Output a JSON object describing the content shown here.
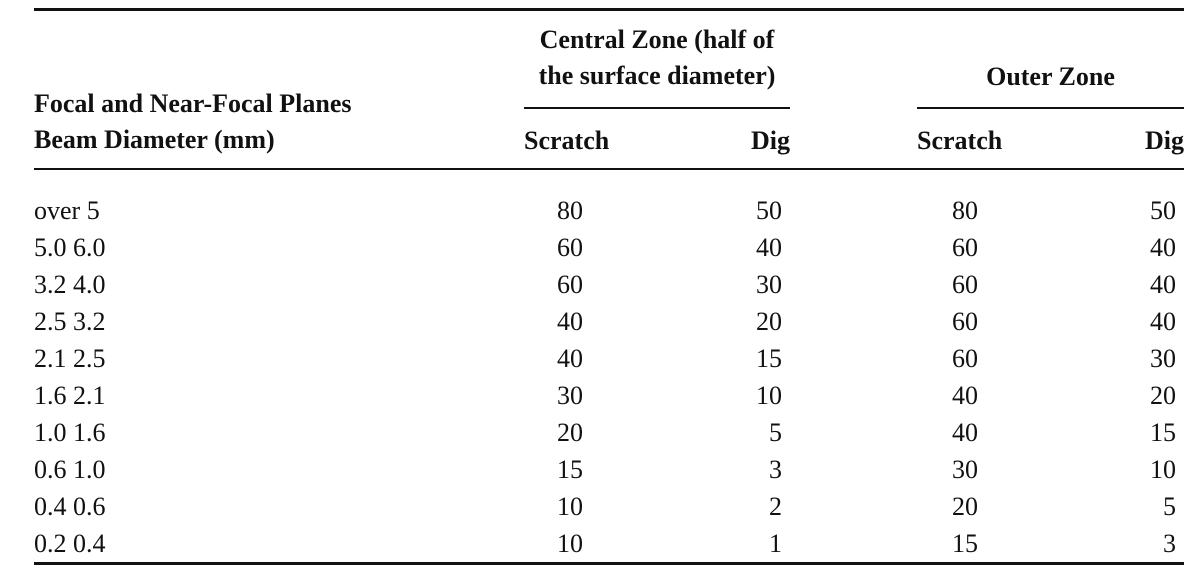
{
  "table": {
    "header": {
      "beam_line1": "Focal and Near-Focal Planes",
      "beam_line2": "Beam Diameter (mm)",
      "central_line1": "Central Zone (half of",
      "central_line2": "the surface diameter)",
      "outer": "Outer Zone",
      "central_scratch": "Scratch",
      "central_dig": "Dig",
      "outer_scratch": "Scratch",
      "outer_dig": "Dig"
    },
    "rows": [
      {
        "beam": "over 5",
        "central_scratch": "80",
        "central_dig": "50",
        "outer_scratch": "80",
        "outer_dig": "50"
      },
      {
        "beam": "5.0  6.0",
        "central_scratch": "60",
        "central_dig": "40",
        "outer_scratch": "60",
        "outer_dig": "40"
      },
      {
        "beam": "3.2  4.0",
        "central_scratch": "60",
        "central_dig": "30",
        "outer_scratch": "60",
        "outer_dig": "40"
      },
      {
        "beam": "2.5  3.2",
        "central_scratch": "40",
        "central_dig": "20",
        "outer_scratch": "60",
        "outer_dig": "40"
      },
      {
        "beam": "2.1  2.5",
        "central_scratch": "40",
        "central_dig": "15",
        "outer_scratch": "60",
        "outer_dig": "30"
      },
      {
        "beam": "1.6  2.1",
        "central_scratch": "30",
        "central_dig": "10",
        "outer_scratch": "40",
        "outer_dig": "20"
      },
      {
        "beam": "1.0  1.6",
        "central_scratch": "20",
        "central_dig": "5",
        "outer_scratch": "40",
        "outer_dig": "15"
      },
      {
        "beam": "0.6  1.0",
        "central_scratch": "15",
        "central_dig": "3",
        "outer_scratch": "30",
        "outer_dig": "10"
      },
      {
        "beam": "0.4  0.6",
        "central_scratch": "10",
        "central_dig": "2",
        "outer_scratch": "20",
        "outer_dig": "5"
      },
      {
        "beam": "0.2  0.4",
        "central_scratch": "10",
        "central_dig": "1",
        "outer_scratch": "15",
        "outer_dig": "3"
      }
    ]
  }
}
